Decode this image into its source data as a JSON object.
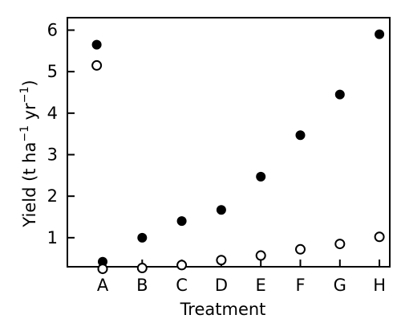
{
  "chart_data": {
    "type": "scatter",
    "xlabel": "Treatment",
    "ylabel": {
      "prefix": "Yield (t ha",
      "exp1": "−1",
      "middle": " yr",
      "exp2": "−1",
      "suffix": ")"
    },
    "categories": [
      "A",
      "B",
      "C",
      "D",
      "E",
      "F",
      "G",
      "H"
    ],
    "ylim": [
      0.3,
      6.3
    ],
    "yticks": [
      1,
      2,
      3,
      4,
      5,
      6
    ],
    "grid": false,
    "series": [
      {
        "marker": "filled-circle",
        "color": "#000000",
        "points": [
          {
            "x": "A",
            "y": 5.65,
            "offset": -0.15
          },
          {
            "x": "A",
            "y": 0.42,
            "offset": 0.0
          },
          {
            "x": "B",
            "y": 1.0
          },
          {
            "x": "C",
            "y": 1.4
          },
          {
            "x": "D",
            "y": 1.67
          },
          {
            "x": "E",
            "y": 2.47
          },
          {
            "x": "F",
            "y": 3.47
          },
          {
            "x": "G",
            "y": 4.45
          },
          {
            "x": "H",
            "y": 5.9
          }
        ]
      },
      {
        "marker": "open-circle",
        "color": "#000000",
        "points": [
          {
            "x": "A",
            "y": 5.15,
            "offset": -0.15
          },
          {
            "x": "A",
            "y": 0.25,
            "offset": 0.0
          },
          {
            "x": "B",
            "y": 0.27
          },
          {
            "x": "C",
            "y": 0.34
          },
          {
            "x": "D",
            "y": 0.46
          },
          {
            "x": "E",
            "y": 0.57
          },
          {
            "x": "F",
            "y": 0.72
          },
          {
            "x": "G",
            "y": 0.85
          },
          {
            "x": "H",
            "y": 1.02
          }
        ]
      }
    ]
  }
}
